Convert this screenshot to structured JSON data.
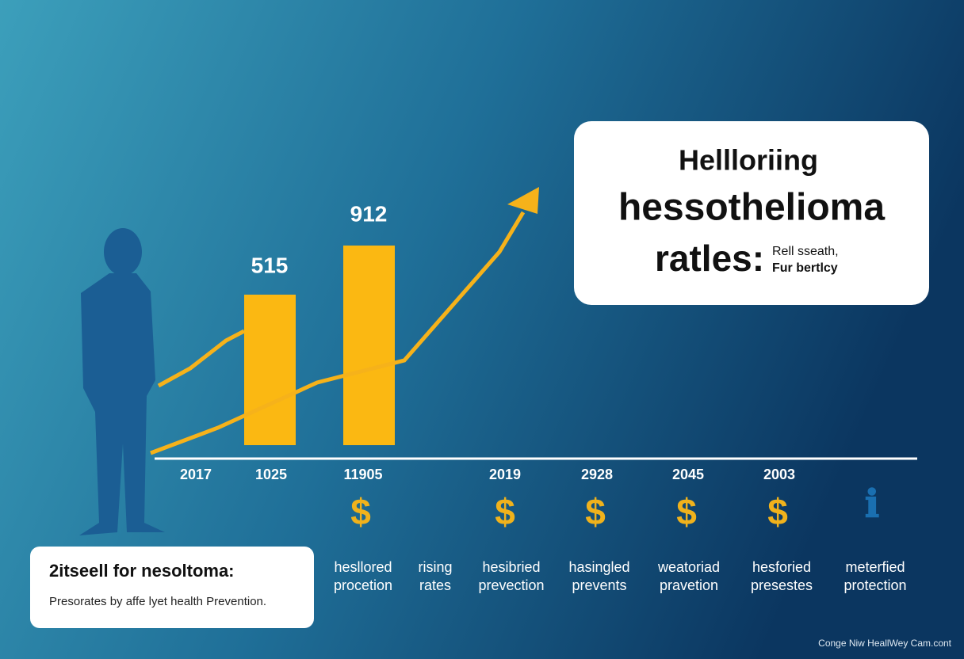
{
  "title_box": {
    "line1": "Hellloriing",
    "line2": "hessothelioma",
    "line3": "ratles:",
    "side1": "Rell sseath,",
    "side2": "Fur bertlcy"
  },
  "bars": [
    {
      "label": "515"
    },
    {
      "label": "912"
    }
  ],
  "years": [
    "2017",
    "1025",
    "11905",
    "2019",
    "2928",
    "2045",
    "2003"
  ],
  "captions": [
    [
      "hesllored",
      "procetion"
    ],
    [
      "rising",
      "rates"
    ],
    [
      "hesibried",
      "prevection"
    ],
    [
      "hasingled",
      "prevents"
    ],
    [
      "weatoriad",
      "pravetion"
    ],
    [
      "hesforied",
      "presestes"
    ],
    [
      "meterfied",
      "protection"
    ]
  ],
  "info_box": {
    "heading": "2itseell for nesoltoma:",
    "text": "Presorates by affe lyet health Prevention."
  },
  "footer": "Conge Niw HeallWey Cam.cont"
}
